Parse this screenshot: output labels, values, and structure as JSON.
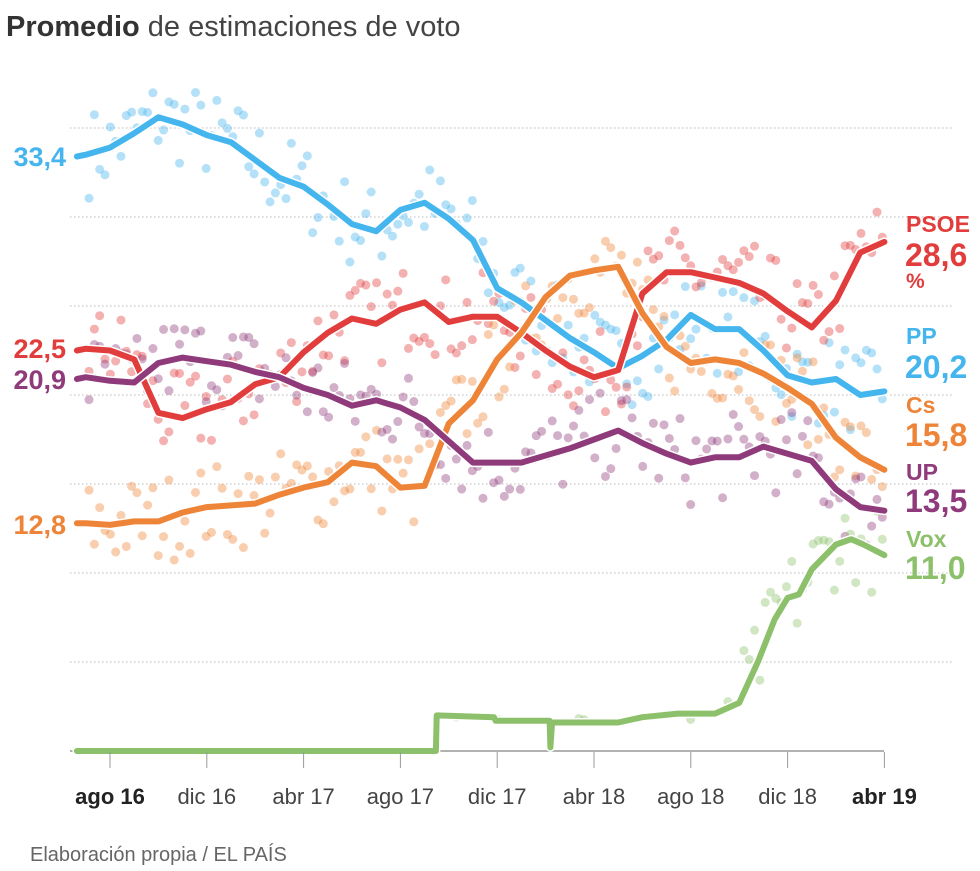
{
  "title": {
    "bold": "Promedio",
    "rest": " de estimaciones de voto"
  },
  "footer": "Elaboración propia / EL PAÍS",
  "chart_data": {
    "type": "line",
    "title": "Promedio de estimaciones de voto",
    "unit": "%",
    "ylim": [
      0,
      35
    ],
    "yticks": [
      0,
      5,
      10,
      15,
      20,
      25,
      30,
      35
    ],
    "grid": true,
    "xlim": [
      "2016-06-20",
      "2019-04-01"
    ],
    "xticks": [
      {
        "date": "2016-08-01",
        "label": "ago 16",
        "bold": true
      },
      {
        "date": "2016-12-01",
        "label": "dic 16",
        "bold": false
      },
      {
        "date": "2017-04-01",
        "label": "abr 17",
        "bold": false
      },
      {
        "date": "2017-08-01",
        "label": "ago 17",
        "bold": false
      },
      {
        "date": "2017-12-01",
        "label": "dic 17",
        "bold": false
      },
      {
        "date": "2018-04-01",
        "label": "abr 18",
        "bold": false
      },
      {
        "date": "2018-08-01",
        "label": "ago 18",
        "bold": false
      },
      {
        "date": "2018-12-01",
        "label": "dic 18",
        "bold": false
      },
      {
        "date": "2019-04-01",
        "label": "abr 19",
        "bold": true
      }
    ],
    "x": [
      "2016-06-20",
      "2016-07-01",
      "2016-08-01",
      "2016-09-01",
      "2016-10-01",
      "2016-11-01",
      "2016-12-01",
      "2017-01-01",
      "2017-02-01",
      "2017-03-01",
      "2017-04-01",
      "2017-05-01",
      "2017-06-01",
      "2017-07-01",
      "2017-08-01",
      "2017-09-01",
      "2017-10-01",
      "2017-11-01",
      "2017-12-01",
      "2018-01-01",
      "2018-02-01",
      "2018-03-01",
      "2018-04-01",
      "2018-05-01",
      "2018-06-01",
      "2018-07-01",
      "2018-08-01",
      "2018-09-01",
      "2018-10-01",
      "2018-11-01",
      "2018-12-01",
      "2019-01-01",
      "2019-02-01",
      "2019-03-01",
      "2019-04-01"
    ],
    "series": [
      {
        "name": "PP",
        "color": "#45b5ee",
        "start_label": "33,4",
        "end_label": "20,2",
        "values": [
          33.4,
          33.5,
          33.9,
          34.7,
          35.6,
          35.2,
          34.6,
          34.2,
          33.2,
          32.2,
          31.7,
          30.7,
          29.6,
          29.2,
          30.4,
          30.8,
          29.9,
          28.7,
          26.0,
          25.2,
          24.2,
          23.2,
          22.4,
          21.5,
          22.2,
          23.1,
          24.5,
          23.7,
          23.7,
          22.5,
          21.1,
          20.7,
          20.9,
          20.0,
          20.2
        ]
      },
      {
        "name": "PSOE",
        "color": "#e23d3d",
        "start_label": "22,5",
        "end_label": "28,6",
        "end_unit": "%",
        "values": [
          22.5,
          22.6,
          22.5,
          22.0,
          19.0,
          18.7,
          19.2,
          19.6,
          20.6,
          21.0,
          22.4,
          23.5,
          24.3,
          24.0,
          24.8,
          25.2,
          24.1,
          24.4,
          24.4,
          23.5,
          22.5,
          21.6,
          21.0,
          21.4,
          25.7,
          26.9,
          26.9,
          26.6,
          26.3,
          25.7,
          24.7,
          23.8,
          25.3,
          28.0,
          28.6
        ]
      },
      {
        "name": "Cs",
        "color": "#ee8438",
        "start_label": "12,8",
        "end_label": "15,8",
        "values": [
          12.8,
          12.8,
          12.7,
          12.9,
          12.9,
          13.4,
          13.7,
          13.8,
          13.9,
          14.4,
          14.8,
          15.1,
          16.2,
          16.0,
          14.8,
          14.9,
          18.4,
          19.7,
          22.0,
          23.5,
          25.5,
          26.7,
          27.0,
          27.2,
          24.6,
          22.7,
          21.8,
          22.0,
          21.8,
          21.2,
          20.4,
          19.5,
          17.6,
          16.5,
          15.8
        ]
      },
      {
        "name": "UP",
        "color": "#8f3a7a",
        "start_label": "20,9",
        "end_label": "13,5",
        "values": [
          20.9,
          21.0,
          20.8,
          20.7,
          21.8,
          22.1,
          21.9,
          21.7,
          21.3,
          21.0,
          20.4,
          20.0,
          19.4,
          19.7,
          19.3,
          18.6,
          17.4,
          16.2,
          16.2,
          16.2,
          16.6,
          17.0,
          17.5,
          18.0,
          17.3,
          16.7,
          16.2,
          16.5,
          16.5,
          17.1,
          16.7,
          16.3,
          14.7,
          13.7,
          13.5
        ]
      },
      {
        "name": "Vox",
        "color": "#8cc06a",
        "end_label": "11,0",
        "points": [
          [
            "2016-06-20",
            0
          ],
          [
            "2017-09-15",
            0
          ],
          [
            "2017-09-16",
            2.0
          ],
          [
            "2017-11-27",
            1.9
          ],
          [
            "2017-11-29",
            1.7
          ],
          [
            "2018-02-06",
            1.7
          ],
          [
            "2018-02-07",
            0.2
          ],
          [
            "2018-02-09",
            1.6
          ],
          [
            "2018-05-01",
            1.6
          ],
          [
            "2018-06-01",
            1.9
          ],
          [
            "2018-07-15",
            2.1
          ],
          [
            "2018-09-01",
            2.1
          ],
          [
            "2018-10-01",
            2.7
          ],
          [
            "2018-10-25",
            5.1
          ],
          [
            "2018-11-15",
            7.4
          ],
          [
            "2018-12-01",
            8.6
          ],
          [
            "2018-12-15",
            8.8
          ],
          [
            "2019-01-01",
            10.2
          ],
          [
            "2019-02-01",
            11.6
          ],
          [
            "2019-02-20",
            11.9
          ],
          [
            "2019-03-05",
            11.6
          ],
          [
            "2019-04-01",
            11.0
          ]
        ]
      }
    ]
  }
}
